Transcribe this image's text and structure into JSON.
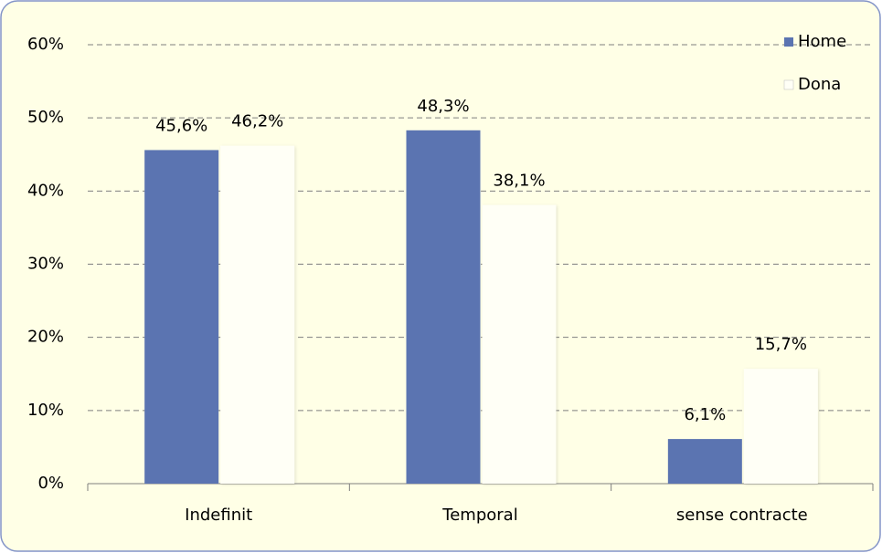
{
  "chart_data": {
    "type": "bar",
    "categories": [
      "Indefinit",
      "Temporal",
      "sense contracte"
    ],
    "series": [
      {
        "name": "Home",
        "color": "#5b74b1",
        "values": [
          45.6,
          48.3,
          6.1
        ],
        "value_labels": [
          "45,6%",
          "48,3%",
          "6,1%"
        ]
      },
      {
        "name": "Dona",
        "color": "#fffff6",
        "values": [
          46.2,
          38.1,
          15.7
        ],
        "value_labels": [
          "46,2%",
          "38,1%",
          "15,7%"
        ]
      }
    ],
    "ylim": [
      0,
      60
    ],
    "yticks": [
      {
        "value": 0,
        "label": "0%"
      },
      {
        "value": 10,
        "label": "10%"
      },
      {
        "value": 20,
        "label": "20%"
      },
      {
        "value": 30,
        "label": "30%"
      },
      {
        "value": 40,
        "label": "40%"
      },
      {
        "value": 50,
        "label": "50%"
      },
      {
        "value": 60,
        "label": "60%"
      }
    ],
    "grid": true,
    "legend": "top-right"
  }
}
